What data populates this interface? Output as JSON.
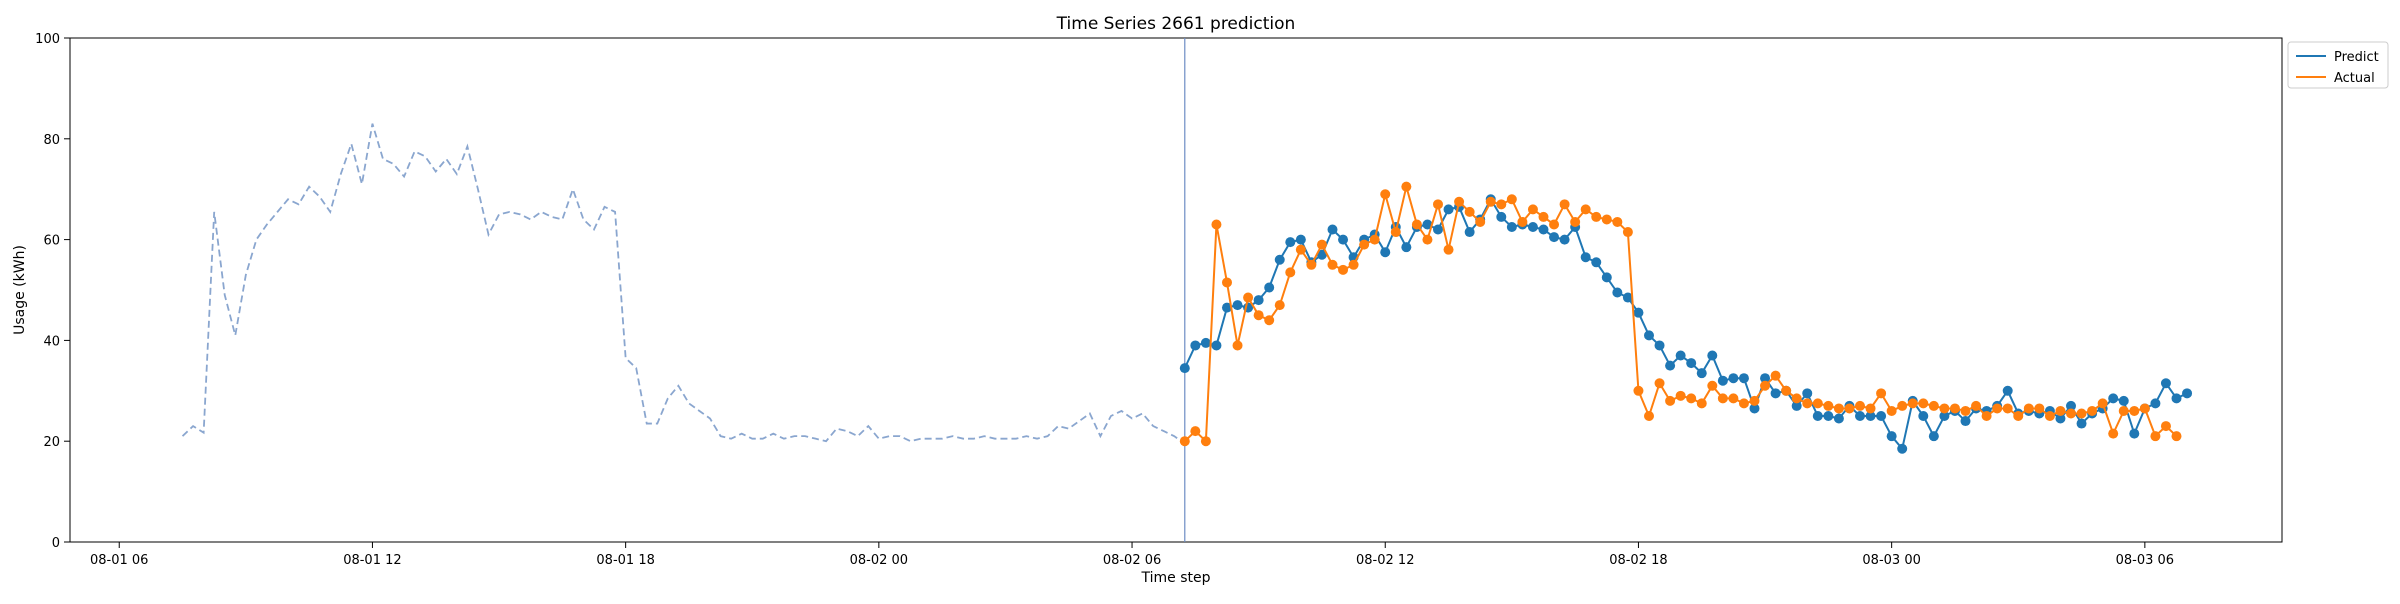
{
  "chart_data": {
    "type": "line",
    "title": "Time Series 2661 prediction",
    "xlabel": "Time step",
    "ylabel": "Usage (kWh)",
    "ylim": [
      0,
      100
    ],
    "yticks": [
      0,
      20,
      40,
      60,
      80,
      100
    ],
    "xlim": [
      "08-01 04:50",
      "08-03 09:15"
    ],
    "xticks": [
      {
        "t": "08-01 06:00",
        "label": "08-01 06"
      },
      {
        "t": "08-01 12:00",
        "label": "08-01 12"
      },
      {
        "t": "08-01 18:00",
        "label": "08-01 18"
      },
      {
        "t": "08-02 00:00",
        "label": "08-02 00"
      },
      {
        "t": "08-02 06:00",
        "label": "08-02 06"
      },
      {
        "t": "08-02 12:00",
        "label": "08-02 12"
      },
      {
        "t": "08-02 18:00",
        "label": "08-02 18"
      },
      {
        "t": "08-03 00:00",
        "label": "08-03 00"
      },
      {
        "t": "08-03 06:00",
        "label": "08-03 06"
      }
    ],
    "forecast_start": "08-02 07:15",
    "grid": false,
    "legend": {
      "placement": "outside top-right",
      "entries": [
        "Predict",
        "Actual"
      ]
    },
    "colors": {
      "history": "#8aa6cf",
      "predict": "#1f77b4",
      "actual": "#ff7f0e",
      "divider": "#6c8cc4"
    },
    "history": {
      "start": "08-01 07:30",
      "step_minutes": 15,
      "values": [
        21,
        23,
        21.7,
        65.5,
        49,
        41,
        53,
        60,
        63,
        65.5,
        68,
        67,
        70.5,
        68.5,
        65.5,
        73,
        79,
        71,
        83,
        76,
        75,
        72.5,
        77.5,
        76.5,
        73.5,
        76,
        73,
        78.5,
        70,
        61,
        65,
        65.5,
        65,
        64,
        65.5,
        64.5,
        64,
        70,
        64,
        62,
        66.5,
        65.5,
        36.5,
        34.5,
        23.5,
        23.5,
        28.5,
        31,
        27.5,
        26,
        24.5,
        21,
        20.5,
        21.5,
        20.5,
        20.5,
        21.5,
        20.5,
        21,
        21,
        20.5,
        20,
        22.5,
        22,
        21,
        23,
        20.5,
        21,
        21,
        20,
        20.5,
        20.5,
        20.5,
        21,
        20.5,
        20.5,
        21,
        20.5,
        20.5,
        20.5,
        21,
        20.5,
        21,
        23,
        22.5,
        24,
        25.5,
        21,
        25,
        26,
        24.5,
        25.5,
        23,
        22,
        21,
        19.5
      ]
    },
    "series": [
      {
        "name": "Predict",
        "start": "08-02 07:15",
        "step_minutes": 15,
        "values": [
          34.5,
          39,
          39.5,
          39,
          46.5,
          47,
          46.5,
          48,
          50.5,
          56,
          59.5,
          60,
          55.5,
          57,
          62,
          60,
          56.5,
          60,
          61,
          57.5,
          62.5,
          58.5,
          62.5,
          63,
          62,
          66,
          66.5,
          61.5,
          64,
          68,
          64.5,
          62.5,
          63,
          62.5,
          62,
          60.5,
          60,
          62.5,
          56.5,
          55.5,
          52.5,
          49.5,
          48.5,
          45.5,
          41,
          39,
          35,
          37,
          35.5,
          33.5,
          37,
          32,
          32.5,
          32.5,
          26.5,
          32.5,
          29.5,
          30,
          27,
          29.5,
          25,
          25,
          24.5,
          27,
          25,
          25,
          25,
          21,
          18.5,
          28,
          25,
          21,
          25,
          26,
          24,
          26.5,
          26,
          27,
          30,
          25.5,
          26,
          25.5,
          26,
          24.5,
          27,
          23.5,
          25.5,
          26.5,
          28.5,
          28,
          21.5,
          26.5,
          27.5,
          31.5,
          28.5,
          29.5
        ]
      },
      {
        "name": "Actual",
        "start": "08-02 07:15",
        "step_minutes": 15,
        "values": [
          20,
          22,
          20,
          63,
          51.5,
          39,
          48.5,
          45,
          44,
          47,
          53.5,
          58,
          55,
          59,
          55,
          54,
          55,
          59,
          60,
          69,
          61.5,
          70.5,
          63,
          60,
          67,
          58,
          67.5,
          65.5,
          63.5,
          67.5,
          67,
          68,
          63.5,
          66,
          64.5,
          63,
          67,
          63.5,
          66,
          64.5,
          64,
          63.5,
          61.5,
          30,
          25,
          31.5,
          28,
          29,
          28.5,
          27.5,
          31,
          28.5,
          28.5,
          27.5,
          28,
          31,
          33,
          30,
          28.5,
          27.5,
          27.5,
          27,
          26.5,
          26.5,
          27,
          26.5,
          29.5,
          26,
          27,
          27.5,
          27.5,
          27,
          26.5,
          26.5,
          26,
          27,
          25,
          26.5,
          26.5,
          25,
          26.5,
          26.5,
          25,
          26,
          25.5,
          25.5,
          26,
          27.5,
          21.5,
          26,
          26,
          26.5,
          21,
          23,
          21
        ]
      }
    ]
  }
}
